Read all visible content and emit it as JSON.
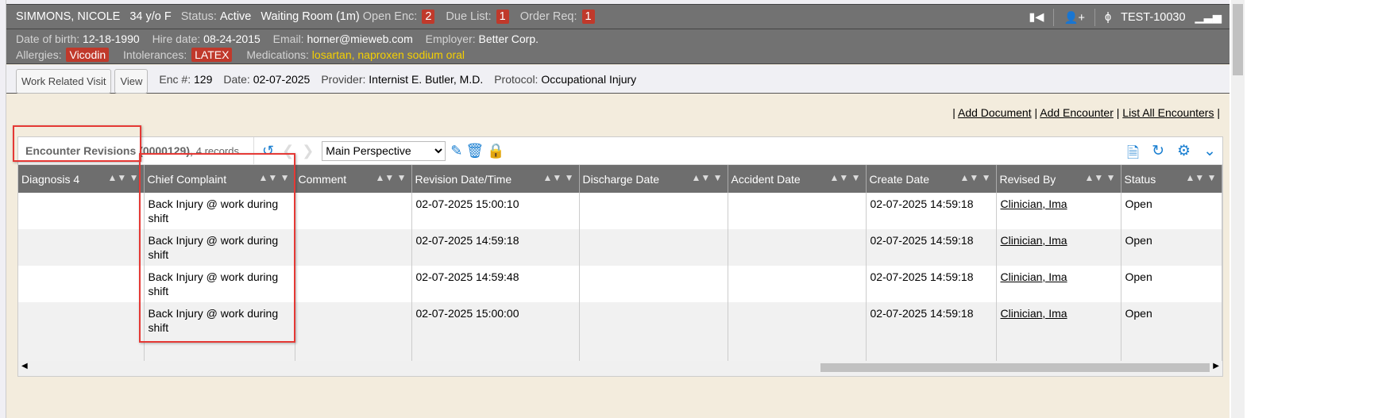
{
  "patient": {
    "name": "SIMMONS, NICOLE",
    "age_sex": "34 y/o F",
    "status_label": "Status:",
    "status": "Active",
    "waiting": "Waiting Room (1m)",
    "open_enc_label": "Open Enc:",
    "open_enc": "2",
    "due_list_label": "Due List:",
    "due_list": "1",
    "order_req_label": "Order Req:",
    "order_req": "1",
    "account": "TEST-10030",
    "dob_label": "Date of birth:",
    "dob": "12-18-1990",
    "hire_label": "Hire date:",
    "hire": "08-24-2015",
    "email_label": "Email:",
    "email": "horner@mieweb.com",
    "employer_label": "Employer:",
    "employer": "Better Corp.",
    "allergies_label": "Allergies:",
    "allergies": "Vicodin",
    "intolerances_label": "Intolerances:",
    "intolerances": "LATEX",
    "medications_label": "Medications:",
    "med1": "losartan",
    "med2": "naproxen sodium oral"
  },
  "encounter": {
    "visit_button": "Work Related Visit",
    "view_button": "View",
    "enc_label": "Enc #:",
    "enc": "129",
    "date_label": "Date:",
    "date": "02-07-2025",
    "provider_label": "Provider:",
    "provider": "Internist E. Butler, M.D.",
    "protocol_label": "Protocol:",
    "protocol": "Occupational Injury"
  },
  "links": {
    "add_document": "Add Document",
    "add_encounter": "Add Encounter",
    "list_all": "List All Encounters"
  },
  "grid": {
    "title": "Encounter Revisions",
    "id": "(0000129)",
    "records": "4 records",
    "perspective": "Main Perspective",
    "columns": [
      "Diagnosis 4",
      "Chief Complaint",
      "Comment",
      "Revision Date/Time",
      "Discharge Date",
      "Accident Date",
      "Create Date",
      "Revised By",
      "Status"
    ],
    "rows": [
      [
        "",
        "Back Injury @ work during shift",
        "",
        "02-07-2025 15:00:10",
        "",
        "",
        "02-07-2025 14:59:18",
        "Clinician, Ima",
        "Open"
      ],
      [
        "",
        "Back Injury @ work during shift",
        "",
        "02-07-2025 14:59:18",
        "",
        "",
        "02-07-2025 14:59:18",
        "Clinician, Ima",
        "Open"
      ],
      [
        "",
        "Back Injury @ work during shift",
        "",
        "02-07-2025 14:59:48",
        "",
        "",
        "02-07-2025 14:59:18",
        "Clinician, Ima",
        "Open"
      ],
      [
        "",
        "Back Injury @ work during shift",
        "",
        "02-07-2025 15:00:00",
        "",
        "",
        "02-07-2025 14:59:18",
        "Clinician, Ima",
        "Open"
      ]
    ]
  },
  "colors": {
    "header": "#727272",
    "badge": "#c0392b",
    "medication": "#f5d000",
    "accent": "#1a7fd1",
    "background": "#f3ecdd",
    "annotation": "#e53935"
  }
}
